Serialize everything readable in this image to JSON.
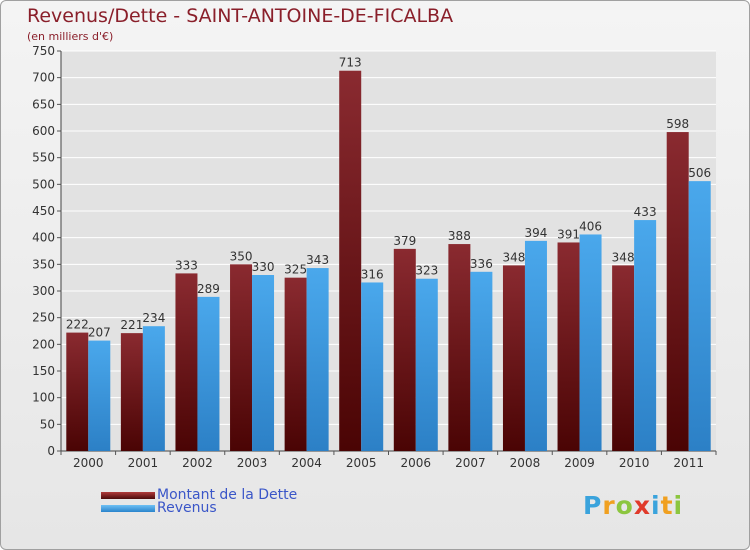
{
  "title": "Revenus/Dette - SAINT-ANTOINE-DE-FICALBA",
  "subtitle": "(en milliers d'€)",
  "logo": {
    "text": "Proxiti",
    "letters": [
      "P",
      "r",
      "o",
      "x",
      "i",
      "t",
      "i"
    ],
    "colors": [
      "#3aa3dc",
      "#f0a020",
      "#8cc63f",
      "#e03a2a",
      "#3aa3dc",
      "#f0a020",
      "#8cc63f"
    ]
  },
  "chart_data": {
    "type": "bar",
    "title": "Revenus/Dette - SAINT-ANTOINE-DE-FICALBA",
    "ylabel": "(en milliers d'€)",
    "xlabel": "",
    "categories": [
      "2000",
      "2001",
      "2002",
      "2003",
      "2004",
      "2005",
      "2006",
      "2007",
      "2008",
      "2009",
      "2010",
      "2011"
    ],
    "series": [
      {
        "name": "Montant de la Dette",
        "color": "#7a1e22",
        "values": [
          222,
          221,
          333,
          350,
          325,
          713,
          379,
          388,
          348,
          391,
          348,
          598
        ]
      },
      {
        "name": "Revenus",
        "color": "#3d9ee3",
        "values": [
          207,
          234,
          289,
          330,
          343,
          316,
          323,
          336,
          394,
          406,
          433,
          506
        ]
      }
    ],
    "ylim": [
      0,
      750
    ],
    "yticks": [
      0,
      50,
      100,
      150,
      200,
      250,
      300,
      350,
      400,
      450,
      500,
      550,
      600,
      650,
      700,
      750
    ],
    "grid": true,
    "legend_position": "bottom-left",
    "data_labels": true
  }
}
